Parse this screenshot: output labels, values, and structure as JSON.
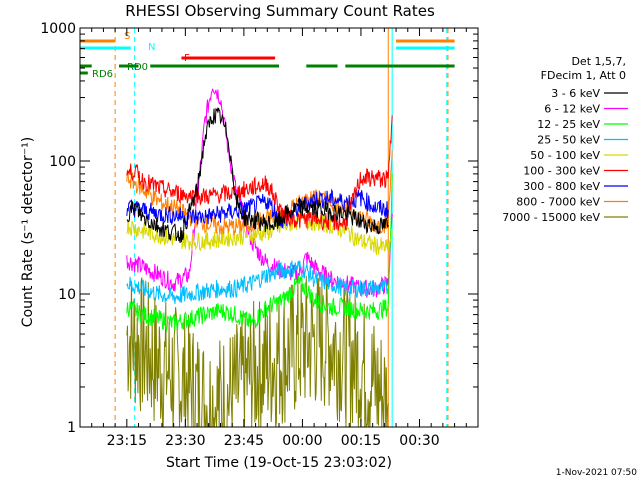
{
  "chart_data": {
    "type": "line",
    "title": "RHESSI Observing Summary Count Rates",
    "xlabel": "Start Time (19-Oct-15 23:03:02)",
    "ylabel": "Count Rate (s⁻¹ detector⁻¹)",
    "yscale": "log",
    "ylim": [
      1,
      1000
    ],
    "xlim": [
      0,
      102
    ],
    "x_units": "minutes since 23:03:02",
    "x_ticks": [
      {
        "label": "23:15",
        "value": 12
      },
      {
        "label": "23:30",
        "value": 27
      },
      {
        "label": "23:45",
        "value": 42
      },
      {
        "label": "00:00",
        "value": 57
      },
      {
        "label": "00:15",
        "value": 72
      },
      {
        "label": "00:30",
        "value": 87
      }
    ],
    "y_ticks": [
      {
        "label": "1000",
        "value": 1000
      },
      {
        "label": "100",
        "value": 100
      },
      {
        "label": "10",
        "value": 10
      },
      {
        "label": "1",
        "value": 1
      }
    ],
    "legend": {
      "header": [
        "Det 1,5,7,",
        "FDecim 1, Att 0"
      ],
      "position": "right"
    },
    "series": [
      {
        "name": "3 - 6 keV",
        "color": "#000000",
        "x": [
          12,
          14,
          16,
          18,
          22,
          26,
          30,
          32,
          34,
          36,
          38,
          40,
          42,
          44,
          46,
          48,
          50,
          52,
          56,
          60,
          64,
          68,
          72,
          76,
          79
        ],
        "values": [
          40,
          45,
          38,
          35,
          30,
          28,
          60,
          150,
          220,
          215,
          150,
          50,
          38,
          36,
          35,
          34,
          33,
          38,
          45,
          44,
          42,
          40,
          35,
          32,
          33
        ]
      },
      {
        "name": "6 - 12 keV",
        "color": "#ff00ff",
        "x": [
          12,
          16,
          20,
          24,
          28,
          30,
          32,
          34,
          36,
          38,
          40,
          44,
          46,
          48,
          52,
          56,
          58,
          60,
          64,
          68,
          72,
          76,
          79,
          80
        ],
        "values": [
          18,
          16,
          14,
          12,
          14,
          50,
          200,
          380,
          300,
          120,
          60,
          25,
          20,
          17,
          15,
          14,
          19,
          16,
          13,
          12,
          11,
          11,
          12,
          40
        ]
      },
      {
        "name": "12 - 25 keV",
        "color": "#00ff00",
        "x": [
          12,
          16,
          20,
          24,
          28,
          32,
          36,
          40,
          44,
          48,
          52,
          56,
          58,
          60,
          64,
          68,
          72,
          76,
          79,
          80
        ],
        "values": [
          8,
          7,
          6.5,
          6,
          6.5,
          7,
          7.5,
          7,
          6,
          8,
          9,
          12,
          11,
          9,
          8,
          8,
          7.5,
          7.5,
          8,
          80
        ]
      },
      {
        "name": "25 - 50 keV",
        "color": "#00bfff",
        "x": [
          12,
          16,
          20,
          24,
          28,
          32,
          36,
          40,
          44,
          48,
          52,
          56,
          58,
          60,
          64,
          68,
          72,
          76,
          79
        ],
        "values": [
          12,
          11,
          10,
          9.5,
          10,
          10.5,
          11,
          11,
          12,
          14,
          15,
          16,
          15,
          13,
          12,
          11,
          11,
          11,
          11
        ]
      },
      {
        "name": "50 - 100 keV",
        "color": "#d8d800",
        "x": [
          12,
          16,
          20,
          24,
          28,
          32,
          36,
          40,
          44,
          48,
          52,
          56,
          60,
          64,
          68,
          72,
          76,
          79,
          80
        ],
        "values": [
          33,
          30,
          28,
          26,
          25,
          25,
          26,
          27,
          28,
          29,
          32,
          36,
          35,
          33,
          30,
          25,
          23,
          22,
          28
        ]
      },
      {
        "name": "100 - 300 keV",
        "color": "#ff0000",
        "x": [
          12,
          14,
          16,
          20,
          24,
          28,
          32,
          36,
          40,
          44,
          48,
          52,
          56,
          60,
          64,
          68,
          72,
          76,
          79,
          80
        ],
        "values": [
          80,
          85,
          72,
          63,
          58,
          55,
          54,
          56,
          58,
          63,
          68,
          40,
          36,
          37,
          35,
          34,
          75,
          74,
          72,
          220
        ]
      },
      {
        "name": "300 - 800 keV",
        "color": "#0000ff",
        "x": [
          12,
          16,
          20,
          24,
          28,
          32,
          36,
          40,
          44,
          48,
          52,
          56,
          60,
          64,
          68,
          72,
          76,
          79
        ],
        "values": [
          45,
          43,
          40,
          39,
          38,
          38,
          40,
          42,
          45,
          50,
          35,
          44,
          52,
          52,
          49,
          53,
          44,
          43
        ]
      },
      {
        "name": "800 - 7000 keV",
        "color": "#ff8000",
        "x": [
          12,
          16,
          20,
          24,
          28,
          32,
          36,
          40,
          44,
          48,
          52,
          56,
          60,
          64,
          68,
          72,
          76,
          79,
          80
        ],
        "values": [
          75,
          62,
          50,
          45,
          38,
          34,
          32,
          32,
          34,
          37,
          40,
          48,
          53,
          50,
          45,
          38,
          33,
          34,
          120
        ]
      },
      {
        "name": "7000 - 15000 keV",
        "color": "#808000",
        "x": [
          12,
          16,
          20,
          24,
          28,
          32,
          36,
          40,
          44,
          48,
          52,
          56,
          60,
          64,
          68,
          72,
          76,
          79
        ],
        "values": [
          5,
          4,
          3,
          2.5,
          2,
          1.5,
          1.5,
          1.8,
          2.5,
          3,
          3.5,
          4,
          4.5,
          4.5,
          3.5,
          3,
          2,
          1.5
        ]
      }
    ],
    "state_bars": [
      {
        "label": "S",
        "color": "#ff8000",
        "segments": [
          [
            0,
            9
          ],
          [
            81,
            96
          ]
        ]
      },
      {
        "label": "N",
        "color": "#00ffff",
        "segments": [
          [
            0,
            13
          ],
          [
            81,
            96
          ]
        ]
      },
      {
        "label": "F",
        "color": "#ff0000",
        "segments": [
          [
            26,
            50
          ]
        ]
      },
      {
        "label": "RD0",
        "color": "#008000",
        "segments": [
          [
            0,
            3
          ],
          [
            10,
            15
          ],
          [
            18,
            51
          ],
          [
            58,
            66
          ],
          [
            68,
            96
          ]
        ]
      },
      {
        "label": "RD6",
        "color": "#008000",
        "segments": [
          [
            0,
            2
          ]
        ]
      }
    ],
    "vlines": [
      {
        "x": 0,
        "color": "#00ffff",
        "style": "solid"
      },
      {
        "x": 9,
        "color": "#ff8000",
        "style": "dashed"
      },
      {
        "x": 14,
        "color": "#00ffff",
        "style": "dashed"
      },
      {
        "x": 79,
        "color": "#ff8000",
        "style": "solid"
      },
      {
        "x": 80,
        "color": "#00ffff",
        "style": "solid"
      },
      {
        "x": 94,
        "color": "#00ffff",
        "style": "dashed"
      },
      {
        "x": 94.3,
        "color": "#ff8000",
        "style": "dashed"
      }
    ]
  },
  "footer": {
    "date_stamp": "1-Nov-2021 07:50"
  }
}
